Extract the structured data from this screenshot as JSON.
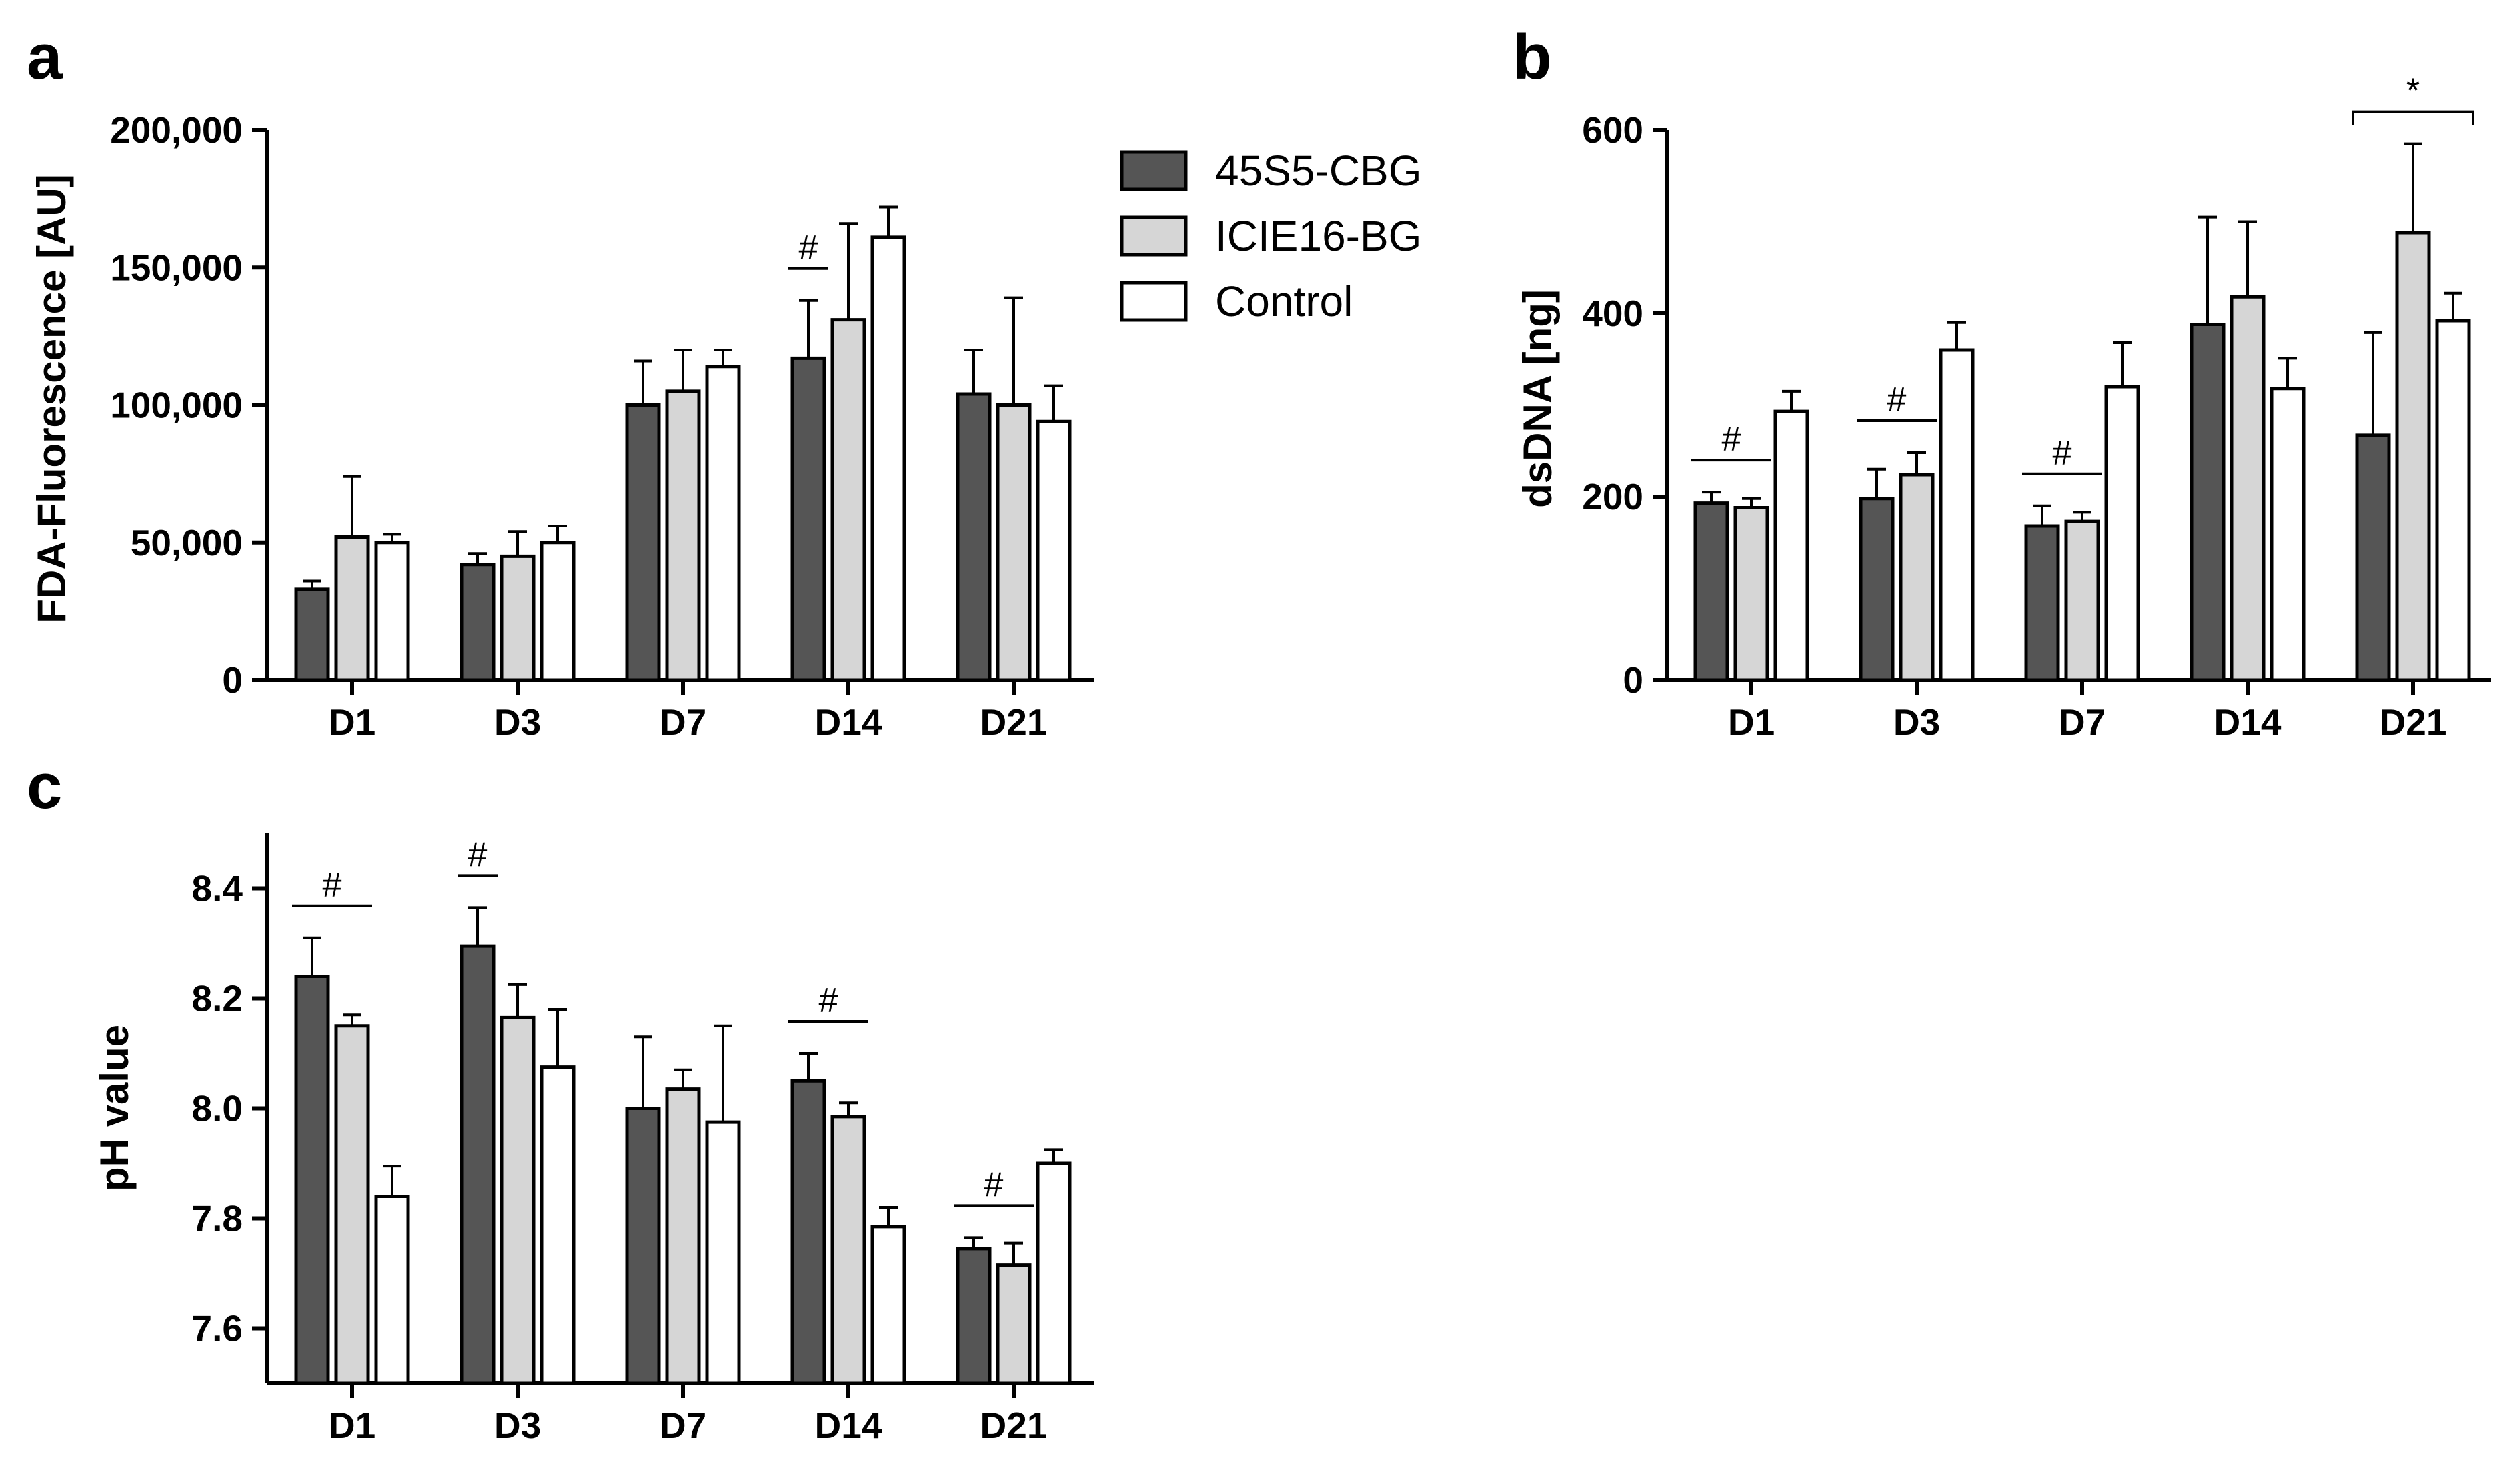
{
  "legend": [
    {
      "name": "45S5-CBG",
      "color": "#555555"
    },
    {
      "name": "ICIE16-BG",
      "color": "#d6d6d6"
    },
    {
      "name": "Control",
      "color": "#ffffff"
    }
  ],
  "chart_data": [
    {
      "panel": "a",
      "type": "bar",
      "ylabel": "FDA-Fluorescence [AU]",
      "xlabel": "",
      "categories": [
        "D1",
        "D3",
        "D7",
        "D14",
        "D21"
      ],
      "ylim": [
        0,
        200000
      ],
      "yticks": [
        0,
        50000,
        100000,
        150000,
        200000
      ],
      "ytick_labels": [
        "0",
        "50,000",
        "100,000",
        "150,000",
        "200,000"
      ],
      "series": [
        {
          "name": "45S5-CBG",
          "values": [
            33000,
            42000,
            100000,
            117000,
            104000
          ],
          "errors": [
            3000,
            4000,
            16000,
            21000,
            16000
          ]
        },
        {
          "name": "ICIE16-BG",
          "values": [
            52000,
            45000,
            105000,
            131000,
            100000
          ],
          "errors": [
            22000,
            9000,
            15000,
            35000,
            39000
          ]
        },
        {
          "name": "Control",
          "values": [
            50000,
            50000,
            114000,
            161000,
            94000
          ],
          "errors": [
            3000,
            6000,
            6000,
            11000,
            13000
          ]
        }
      ],
      "annotations": [
        {
          "text": "#",
          "category": "D14",
          "from_series": 0,
          "to_series": 0
        }
      ]
    },
    {
      "panel": "b",
      "type": "bar",
      "ylabel": "dsDNA [ng]",
      "xlabel": "",
      "categories": [
        "D1",
        "D3",
        "D7",
        "D14",
        "D21"
      ],
      "ylim": [
        0,
        600
      ],
      "yticks": [
        0,
        200,
        400,
        600
      ],
      "ytick_labels": [
        "0",
        "200",
        "400",
        "600"
      ],
      "series": [
        {
          "name": "45S5-CBG",
          "values": [
            193,
            198,
            168,
            388,
            267
          ],
          "errors": [
            12,
            32,
            22,
            117,
            112
          ]
        },
        {
          "name": "ICIE16-BG",
          "values": [
            188,
            224,
            173,
            418,
            488
          ],
          "errors": [
            10,
            24,
            10,
            82,
            97
          ]
        },
        {
          "name": "Control",
          "values": [
            293,
            360,
            320,
            318,
            392
          ],
          "errors": [
            22,
            30,
            48,
            33,
            30
          ]
        }
      ],
      "annotations": [
        {
          "text": "#",
          "category": "D1",
          "from_series": 0,
          "to_series": 1
        },
        {
          "text": "#",
          "category": "D3",
          "from_series": 0,
          "to_series": 1
        },
        {
          "text": "#",
          "category": "D7",
          "from_series": 0,
          "to_series": 1
        },
        {
          "text": "*",
          "category": "D21",
          "from_series": 0,
          "to_series": 2,
          "bracket": true
        }
      ]
    },
    {
      "panel": "c",
      "type": "bar",
      "ylabel": "pH value",
      "xlabel": "",
      "categories": [
        "D1",
        "D3",
        "D7",
        "D14",
        "D21"
      ],
      "ylim": [
        7.5,
        8.5
      ],
      "yticks": [
        7.6,
        7.8,
        8.0,
        8.2,
        8.4
      ],
      "ytick_labels": [
        "7.6",
        "7.8",
        "8.0",
        "8.2",
        "8.4"
      ],
      "series": [
        {
          "name": "45S5-CBG",
          "values": [
            8.24,
            8.295,
            8.0,
            8.05,
            7.745
          ],
          "errors": [
            0.07,
            0.07,
            0.13,
            0.05,
            0.02
          ]
        },
        {
          "name": "ICIE16-BG",
          "values": [
            8.15,
            8.165,
            8.035,
            7.985,
            7.715
          ],
          "errors": [
            0.02,
            0.06,
            0.035,
            0.025,
            0.04
          ]
        },
        {
          "name": "Control",
          "values": [
            7.84,
            8.075,
            7.975,
            7.785,
            7.9
          ],
          "errors": [
            0.055,
            0.105,
            0.175,
            0.035,
            0.025
          ]
        }
      ],
      "annotations": [
        {
          "text": "#",
          "category": "D1",
          "from_series": 0,
          "to_series": 1
        },
        {
          "text": "#",
          "category": "D3",
          "from_series": 0,
          "to_series": 0
        },
        {
          "text": "#",
          "category": "D14",
          "from_series": 0,
          "to_series": 1
        },
        {
          "text": "#",
          "category": "D21",
          "from_series": 0,
          "to_series": 1
        }
      ]
    }
  ]
}
